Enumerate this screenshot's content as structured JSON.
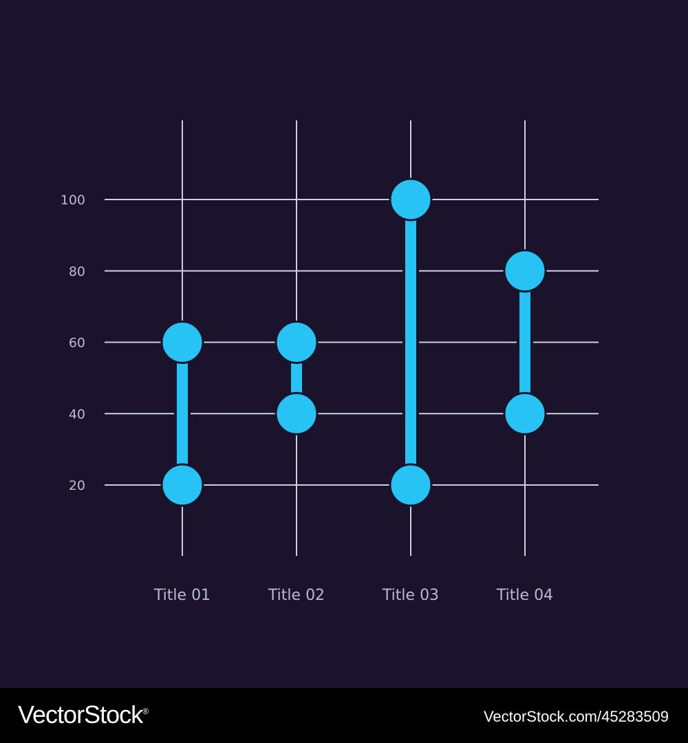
{
  "chart_data": {
    "type": "range",
    "categories": [
      "Title 01",
      "Title 02",
      "Title 03",
      "Title 04"
    ],
    "ranges": [
      {
        "low": 20,
        "high": 60
      },
      {
        "low": 40,
        "high": 60
      },
      {
        "low": 20,
        "high": 100
      },
      {
        "low": 40,
        "high": 80
      }
    ],
    "y_ticks": [
      "20",
      "40",
      "60",
      "80",
      "100"
    ],
    "ylim": [
      0,
      110
    ],
    "grid": true,
    "legend": "none",
    "colors": {
      "background": "#1b132b",
      "grid": "#cfcfe6",
      "marker": "#26c3f4",
      "text": "#b9b9db"
    }
  },
  "footer": {
    "brand": "VectorStock",
    "registered_mark": "®",
    "stock_id": "VectorStock.com/45283509"
  }
}
